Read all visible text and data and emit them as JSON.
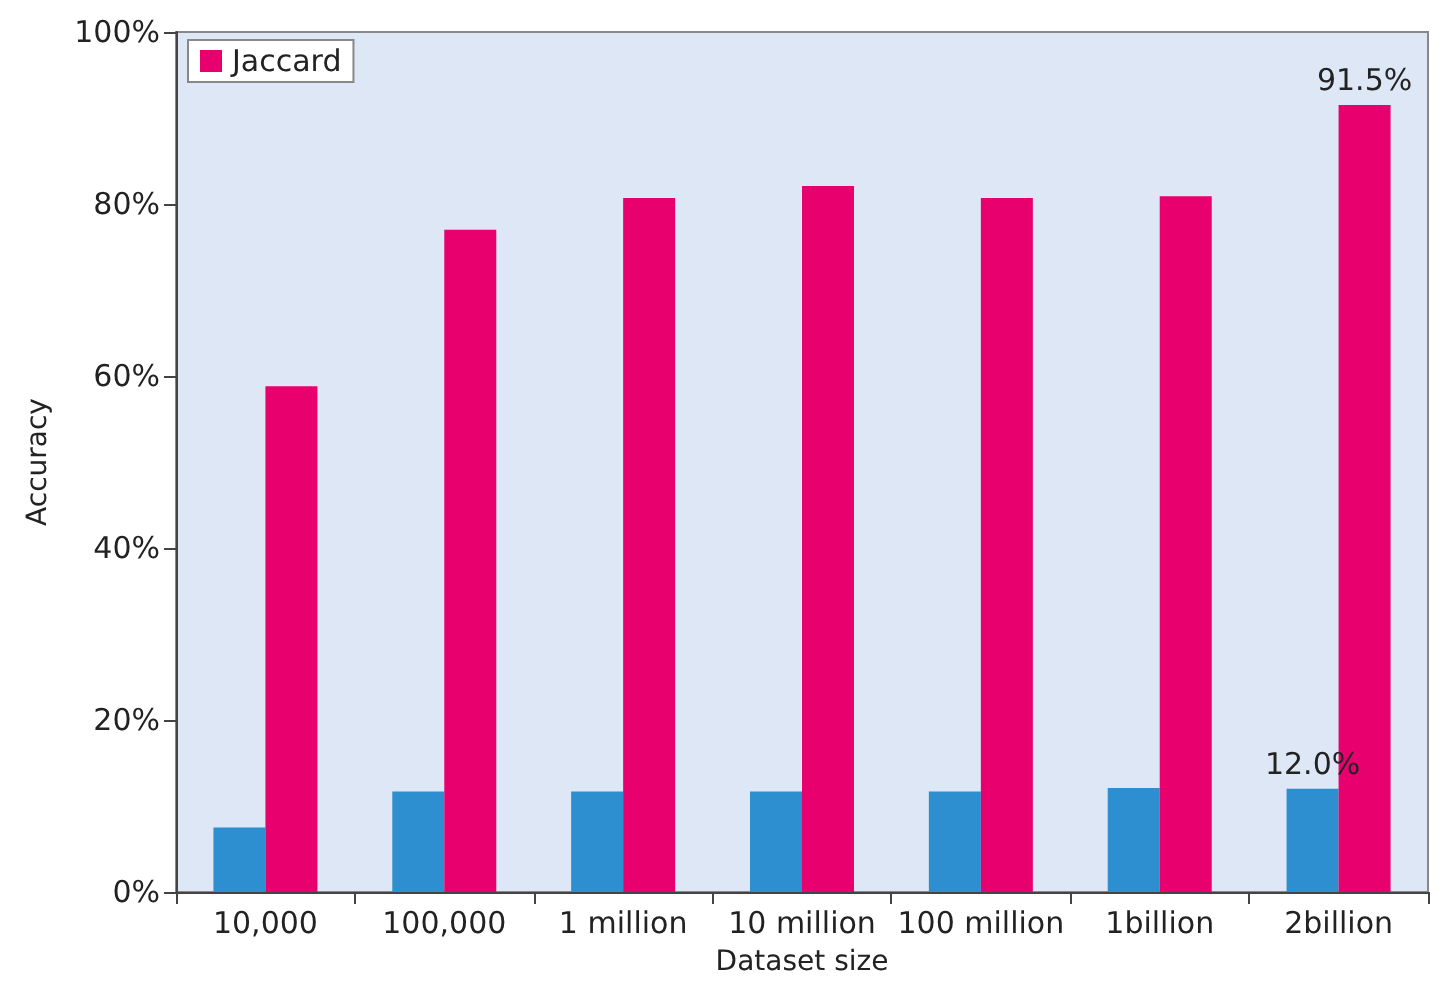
{
  "chart_data": {
    "type": "bar",
    "xlabel": "Dataset size",
    "ylabel": "Accuracy",
    "categories": [
      "10,000",
      "100,000",
      "1 million",
      "10 million",
      "100 million",
      "1billion",
      "2billion"
    ],
    "series": [
      {
        "color": "#2e8fd0",
        "values": [
          7.5,
          11.7,
          11.7,
          11.7,
          11.7,
          12.1,
          12.0
        ],
        "value_labels": [
          null,
          null,
          null,
          null,
          null,
          null,
          "12.0%"
        ]
      },
      {
        "name": "Jaccard",
        "color": "#e8006f",
        "values": [
          58.8,
          77.0,
          80.7,
          82.1,
          80.7,
          80.9,
          91.5
        ],
        "value_labels": [
          null,
          null,
          null,
          null,
          null,
          null,
          "91.5%"
        ]
      }
    ],
    "ylim": [
      0,
      100
    ],
    "yticks": [
      {
        "value": 0,
        "label": "0%"
      },
      {
        "value": 20,
        "label": "20%"
      },
      {
        "value": 40,
        "label": "40%"
      },
      {
        "value": 60,
        "label": "60%"
      },
      {
        "value": 80,
        "label": "80%"
      },
      {
        "value": 100,
        "label": "100%"
      }
    ],
    "grid": false,
    "legend": "top left"
  }
}
